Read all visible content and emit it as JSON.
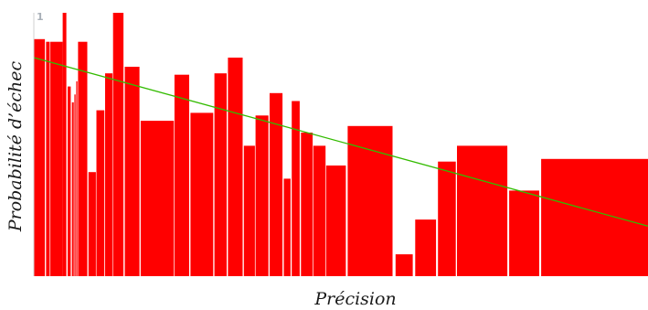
{
  "chart_data": {
    "type": "bar",
    "xlabel": "Précision",
    "ylabel": "Probabilité d’échec",
    "y_tick_label": "1",
    "ylim": [
      0,
      1
    ],
    "grid": false,
    "legend": "none",
    "bar_color": "#ff0000",
    "trend_color": "#33bb00",
    "bars": [
      {
        "x0": 0.0,
        "x1": 0.018,
        "value": 0.9
      },
      {
        "x0": 0.02,
        "x1": 0.026,
        "value": 0.89
      },
      {
        "x0": 0.027,
        "x1": 0.047,
        "value": 0.89
      },
      {
        "x0": 0.047,
        "x1": 0.053,
        "value": 1.0
      },
      {
        "x0": 0.055,
        "x1": 0.06,
        "value": 0.72
      },
      {
        "x0": 0.062,
        "x1": 0.065,
        "value": 0.66
      },
      {
        "x0": 0.066,
        "x1": 0.068,
        "value": 0.69
      },
      {
        "x0": 0.069,
        "x1": 0.071,
        "value": 0.74
      },
      {
        "x0": 0.072,
        "x1": 0.087,
        "value": 0.89
      },
      {
        "x0": 0.089,
        "x1": 0.101,
        "value": 0.395
      },
      {
        "x0": 0.102,
        "x1": 0.115,
        "value": 0.63
      },
      {
        "x0": 0.116,
        "x1": 0.128,
        "value": 0.77
      },
      {
        "x0": 0.129,
        "x1": 0.146,
        "value": 1.0
      },
      {
        "x0": 0.148,
        "x1": 0.172,
        "value": 0.795
      },
      {
        "x0": 0.174,
        "x1": 0.228,
        "value": 0.59
      },
      {
        "x0": 0.229,
        "x1": 0.253,
        "value": 0.765
      },
      {
        "x0": 0.255,
        "x1": 0.292,
        "value": 0.62
      },
      {
        "x0": 0.294,
        "x1": 0.314,
        "value": 0.77
      },
      {
        "x0": 0.316,
        "x1": 0.34,
        "value": 0.83
      },
      {
        "x0": 0.342,
        "x1": 0.36,
        "value": 0.495
      },
      {
        "x0": 0.361,
        "x1": 0.382,
        "value": 0.61
      },
      {
        "x0": 0.384,
        "x1": 0.405,
        "value": 0.695
      },
      {
        "x0": 0.407,
        "x1": 0.418,
        "value": 0.37
      },
      {
        "x0": 0.42,
        "x1": 0.433,
        "value": 0.665
      },
      {
        "x0": 0.435,
        "x1": 0.454,
        "value": 0.545
      },
      {
        "x0": 0.455,
        "x1": 0.475,
        "value": 0.495
      },
      {
        "x0": 0.476,
        "x1": 0.508,
        "value": 0.42
      },
      {
        "x0": 0.511,
        "x1": 0.584,
        "value": 0.57
      },
      {
        "x0": 0.589,
        "x1": 0.617,
        "value": 0.083
      },
      {
        "x0": 0.621,
        "x1": 0.655,
        "value": 0.215
      },
      {
        "x0": 0.658,
        "x1": 0.687,
        "value": 0.435
      },
      {
        "x0": 0.689,
        "x1": 0.771,
        "value": 0.495
      },
      {
        "x0": 0.774,
        "x1": 0.823,
        "value": 0.325
      },
      {
        "x0": 0.826,
        "x1": 1.0,
        "value": 0.445
      }
    ],
    "trend_line": {
      "y_start": 0.83,
      "y_end": 0.19
    }
  }
}
